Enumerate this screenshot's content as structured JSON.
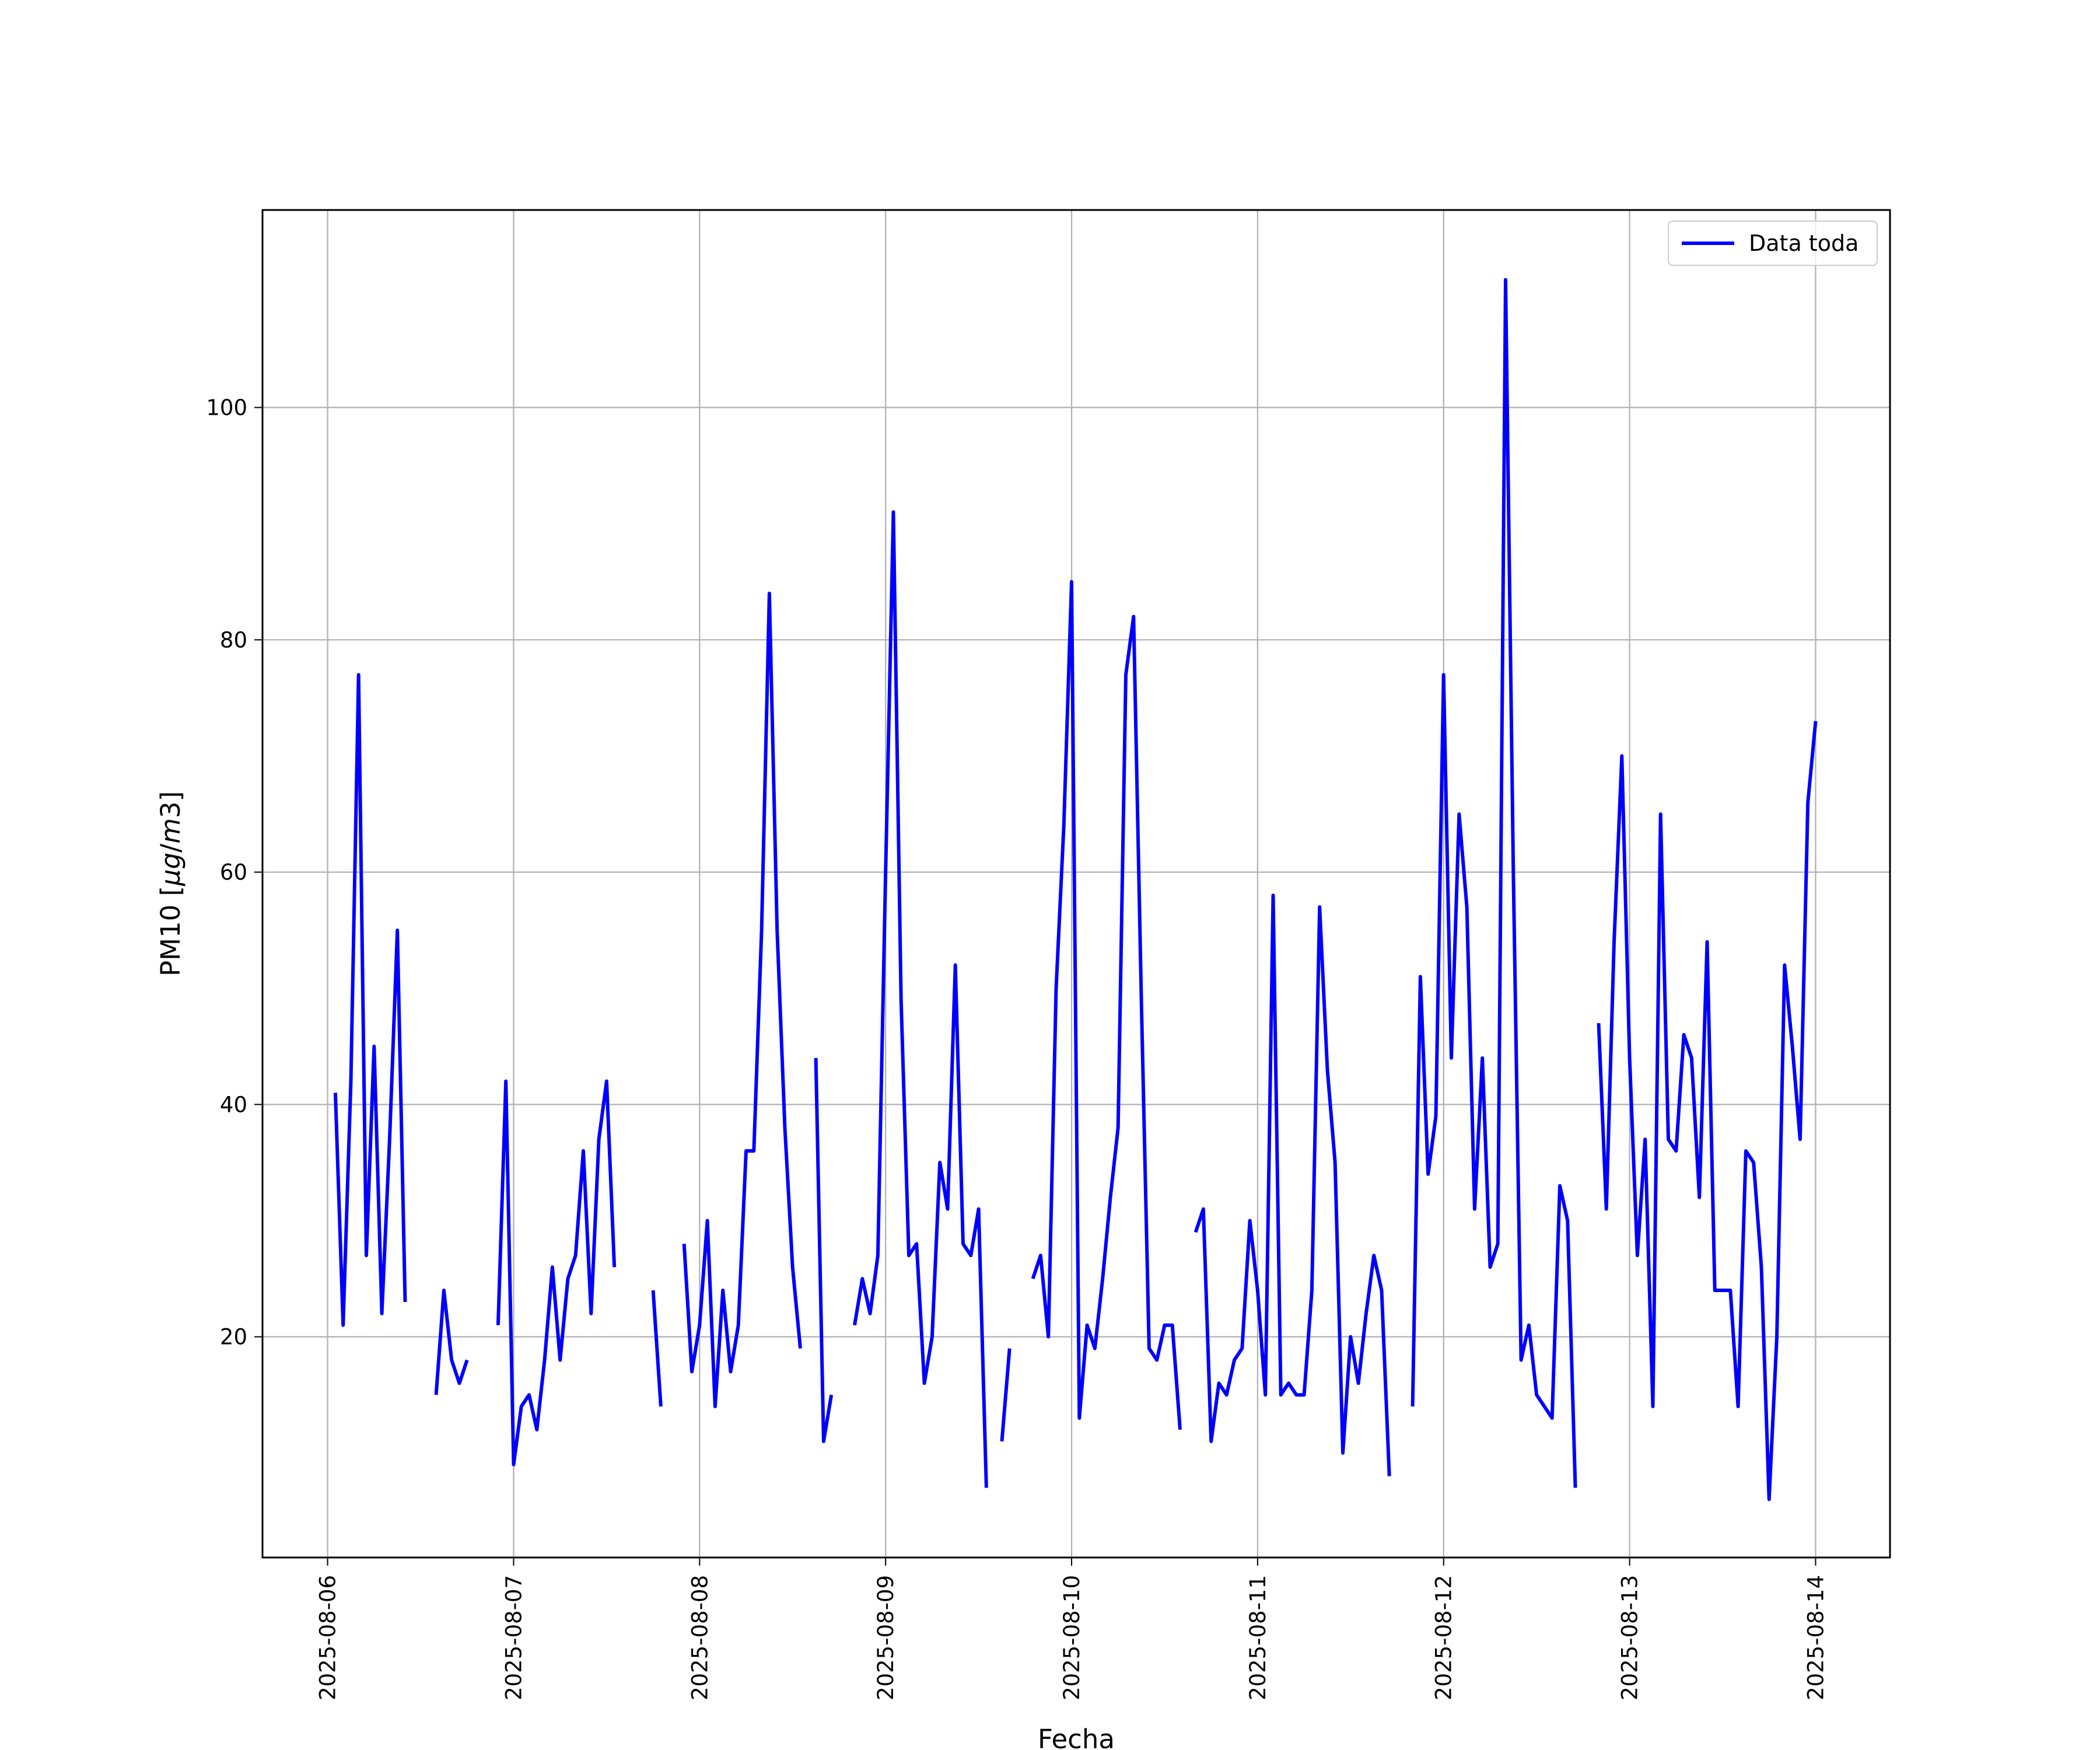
{
  "chart_data": {
    "type": "line",
    "xlabel": "Fecha",
    "ylabel": "PM10 [µg/m3]",
    "ylabel_parts": {
      "prefix": "PM10 [",
      "mu": "µ",
      "g": "g",
      "slash": "/",
      "m": "m",
      "three": "3",
      "suffix": "]"
    },
    "x_ticks": [
      "2025-08-06",
      "2025-08-07",
      "2025-08-08",
      "2025-08-09",
      "2025-08-10",
      "2025-08-11",
      "2025-08-12",
      "2025-08-13",
      "2025-08-14"
    ],
    "y_ticks": [
      20,
      40,
      60,
      80,
      100
    ],
    "xlim_days": [
      -0.35,
      8.4
    ],
    "ylim": [
      1,
      117
    ],
    "grid": true,
    "legend_position": "top-right",
    "series": [
      {
        "name": "Data toda",
        "color": "#0000ff",
        "segments": [
          [
            [
              "2025-08-06 01:00",
              41
            ],
            [
              "2025-08-06 02:00",
              21
            ],
            [
              "2025-08-06 03:00",
              42
            ],
            [
              "2025-08-06 04:00",
              77
            ],
            [
              "2025-08-06 05:00",
              27
            ],
            [
              "2025-08-06 06:00",
              45
            ],
            [
              "2025-08-06 07:00",
              22
            ],
            [
              "2025-08-06 08:00",
              37
            ],
            [
              "2025-08-06 09:00",
              55
            ],
            [
              "2025-08-06 10:00",
              23
            ]
          ],
          [
            [
              "2025-08-06 14:00",
              15
            ],
            [
              "2025-08-06 15:00",
              24
            ],
            [
              "2025-08-06 16:00",
              18
            ],
            [
              "2025-08-06 17:00",
              16
            ],
            [
              "2025-08-06 18:00",
              18
            ]
          ],
          [
            [
              "2025-08-06 22:00",
              21
            ],
            [
              "2025-08-06 23:00",
              42
            ],
            [
              "2025-08-07 00:00",
              9
            ],
            [
              "2025-08-07 01:00",
              14
            ],
            [
              "2025-08-07 02:00",
              15
            ],
            [
              "2025-08-07 03:00",
              12
            ],
            [
              "2025-08-07 04:00",
              18
            ],
            [
              "2025-08-07 05:00",
              26
            ],
            [
              "2025-08-07 06:00",
              18
            ],
            [
              "2025-08-07 07:00",
              25
            ],
            [
              "2025-08-07 08:00",
              27
            ],
            [
              "2025-08-07 09:00",
              36
            ],
            [
              "2025-08-07 10:00",
              22
            ],
            [
              "2025-08-07 11:00",
              37
            ],
            [
              "2025-08-07 12:00",
              42
            ],
            [
              "2025-08-07 13:00",
              26
            ]
          ],
          [
            [
              "2025-08-07 18:00",
              24
            ],
            [
              "2025-08-07 19:00",
              14
            ]
          ],
          [
            [
              "2025-08-07 22:00",
              28
            ],
            [
              "2025-08-07 23:00",
              17
            ],
            [
              "2025-08-08 00:00",
              21
            ],
            [
              "2025-08-08 01:00",
              30
            ],
            [
              "2025-08-08 02:00",
              14
            ],
            [
              "2025-08-08 03:00",
              24
            ],
            [
              "2025-08-08 04:00",
              17
            ],
            [
              "2025-08-08 05:00",
              21
            ],
            [
              "2025-08-08 06:00",
              36
            ],
            [
              "2025-08-08 07:00",
              36
            ],
            [
              "2025-08-08 08:00",
              55
            ],
            [
              "2025-08-08 09:00",
              84
            ],
            [
              "2025-08-08 10:00",
              55
            ],
            [
              "2025-08-08 11:00",
              38
            ],
            [
              "2025-08-08 12:00",
              26
            ],
            [
              "2025-08-08 13:00",
              19
            ]
          ],
          [
            [
              "2025-08-08 15:00",
              44
            ],
            [
              "2025-08-08 16:00",
              11
            ],
            [
              "2025-08-08 17:00",
              15
            ]
          ],
          [
            [
              "2025-08-08 20:00",
              21
            ],
            [
              "2025-08-08 21:00",
              25
            ],
            [
              "2025-08-08 22:00",
              22
            ],
            [
              "2025-08-08 23:00",
              27
            ],
            [
              "2025-08-09 00:00",
              60
            ],
            [
              "2025-08-09 01:00",
              91
            ],
            [
              "2025-08-09 02:00",
              49
            ],
            [
              "2025-08-09 03:00",
              27
            ],
            [
              "2025-08-09 04:00",
              28
            ],
            [
              "2025-08-09 05:00",
              16
            ],
            [
              "2025-08-09 06:00",
              20
            ],
            [
              "2025-08-09 07:00",
              35
            ],
            [
              "2025-08-09 08:00",
              31
            ],
            [
              "2025-08-09 09:00",
              52
            ],
            [
              "2025-08-09 10:00",
              28
            ],
            [
              "2025-08-09 11:00",
              27
            ],
            [
              "2025-08-09 12:00",
              31
            ],
            [
              "2025-08-09 13:00",
              7
            ]
          ],
          [
            [
              "2025-08-09 15:00",
              11
            ],
            [
              "2025-08-09 16:00",
              19
            ]
          ],
          [
            [
              "2025-08-09 19:00",
              25
            ],
            [
              "2025-08-09 20:00",
              27
            ],
            [
              "2025-08-09 21:00",
              20
            ],
            [
              "2025-08-09 22:00",
              50
            ],
            [
              "2025-08-09 23:00",
              64
            ],
            [
              "2025-08-10 00:00",
              85
            ],
            [
              "2025-08-10 01:00",
              13
            ],
            [
              "2025-08-10 02:00",
              21
            ],
            [
              "2025-08-10 03:00",
              19
            ],
            [
              "2025-08-10 04:00",
              25
            ],
            [
              "2025-08-10 05:00",
              32
            ],
            [
              "2025-08-10 06:00",
              38
            ],
            [
              "2025-08-10 07:00",
              77
            ],
            [
              "2025-08-10 08:00",
              82
            ],
            [
              "2025-08-10 09:00",
              49
            ],
            [
              "2025-08-10 10:00",
              19
            ],
            [
              "2025-08-10 11:00",
              18
            ],
            [
              "2025-08-10 12:00",
              21
            ],
            [
              "2025-08-10 13:00",
              21
            ],
            [
              "2025-08-10 14:00",
              12
            ]
          ],
          [
            [
              "2025-08-10 16:00",
              29
            ],
            [
              "2025-08-10 17:00",
              31
            ],
            [
              "2025-08-10 18:00",
              11
            ],
            [
              "2025-08-10 19:00",
              16
            ],
            [
              "2025-08-10 20:00",
              15
            ],
            [
              "2025-08-10 21:00",
              18
            ],
            [
              "2025-08-10 22:00",
              19
            ],
            [
              "2025-08-10 23:00",
              30
            ],
            [
              "2025-08-11 00:00",
              24
            ],
            [
              "2025-08-11 01:00",
              15
            ],
            [
              "2025-08-11 02:00",
              58
            ],
            [
              "2025-08-11 03:00",
              15
            ],
            [
              "2025-08-11 04:00",
              16
            ],
            [
              "2025-08-11 05:00",
              15
            ],
            [
              "2025-08-11 06:00",
              15
            ],
            [
              "2025-08-11 07:00",
              24
            ],
            [
              "2025-08-11 08:00",
              57
            ],
            [
              "2025-08-11 09:00",
              43
            ],
            [
              "2025-08-11 10:00",
              35
            ],
            [
              "2025-08-11 11:00",
              10
            ],
            [
              "2025-08-11 12:00",
              20
            ],
            [
              "2025-08-11 13:00",
              16
            ],
            [
              "2025-08-11 14:00",
              22
            ],
            [
              "2025-08-11 15:00",
              27
            ],
            [
              "2025-08-11 16:00",
              24
            ],
            [
              "2025-08-11 17:00",
              8
            ]
          ],
          [
            [
              "2025-08-11 20:00",
              14
            ],
            [
              "2025-08-11 21:00",
              51
            ],
            [
              "2025-08-11 22:00",
              34
            ],
            [
              "2025-08-11 23:00",
              39
            ],
            [
              "2025-08-12 00:00",
              77
            ],
            [
              "2025-08-12 01:00",
              44
            ],
            [
              "2025-08-12 02:00",
              65
            ],
            [
              "2025-08-12 03:00",
              57
            ],
            [
              "2025-08-12 04:00",
              31
            ],
            [
              "2025-08-12 05:00",
              44
            ],
            [
              "2025-08-12 06:00",
              26
            ],
            [
              "2025-08-12 07:00",
              28
            ],
            [
              "2025-08-12 08:00",
              111
            ],
            [
              "2025-08-12 09:00",
              60
            ],
            [
              "2025-08-12 10:00",
              18
            ],
            [
              "2025-08-12 11:00",
              21
            ],
            [
              "2025-08-12 12:00",
              15
            ],
            [
              "2025-08-12 13:00",
              14
            ],
            [
              "2025-08-12 14:00",
              13
            ],
            [
              "2025-08-12 15:00",
              33
            ],
            [
              "2025-08-12 16:00",
              30
            ],
            [
              "2025-08-12 17:00",
              7
            ]
          ],
          [
            [
              "2025-08-12 20:00",
              47
            ],
            [
              "2025-08-12 21:00",
              31
            ],
            [
              "2025-08-12 22:00",
              54
            ],
            [
              "2025-08-12 23:00",
              70
            ],
            [
              "2025-08-13 00:00",
              44
            ],
            [
              "2025-08-13 01:00",
              27
            ],
            [
              "2025-08-13 02:00",
              37
            ],
            [
              "2025-08-13 03:00",
              14
            ],
            [
              "2025-08-13 04:00",
              65
            ],
            [
              "2025-08-13 05:00",
              37
            ],
            [
              "2025-08-13 06:00",
              36
            ],
            [
              "2025-08-13 07:00",
              46
            ],
            [
              "2025-08-13 08:00",
              44
            ],
            [
              "2025-08-13 09:00",
              32
            ],
            [
              "2025-08-13 10:00",
              54
            ],
            [
              "2025-08-13 11:00",
              24
            ],
            [
              "2025-08-13 12:00",
              24
            ],
            [
              "2025-08-13 13:00",
              24
            ],
            [
              "2025-08-13 14:00",
              14
            ],
            [
              "2025-08-13 15:00",
              36
            ],
            [
              "2025-08-13 16:00",
              35
            ],
            [
              "2025-08-13 17:00",
              26
            ],
            [
              "2025-08-13 18:00",
              6
            ],
            [
              "2025-08-13 19:00",
              20
            ],
            [
              "2025-08-13 20:00",
              52
            ],
            [
              "2025-08-13 21:00",
              45
            ],
            [
              "2025-08-13 22:00",
              37
            ],
            [
              "2025-08-13 23:00",
              66
            ],
            [
              "2025-08-14 00:00",
              73
            ]
          ]
        ]
      }
    ]
  }
}
